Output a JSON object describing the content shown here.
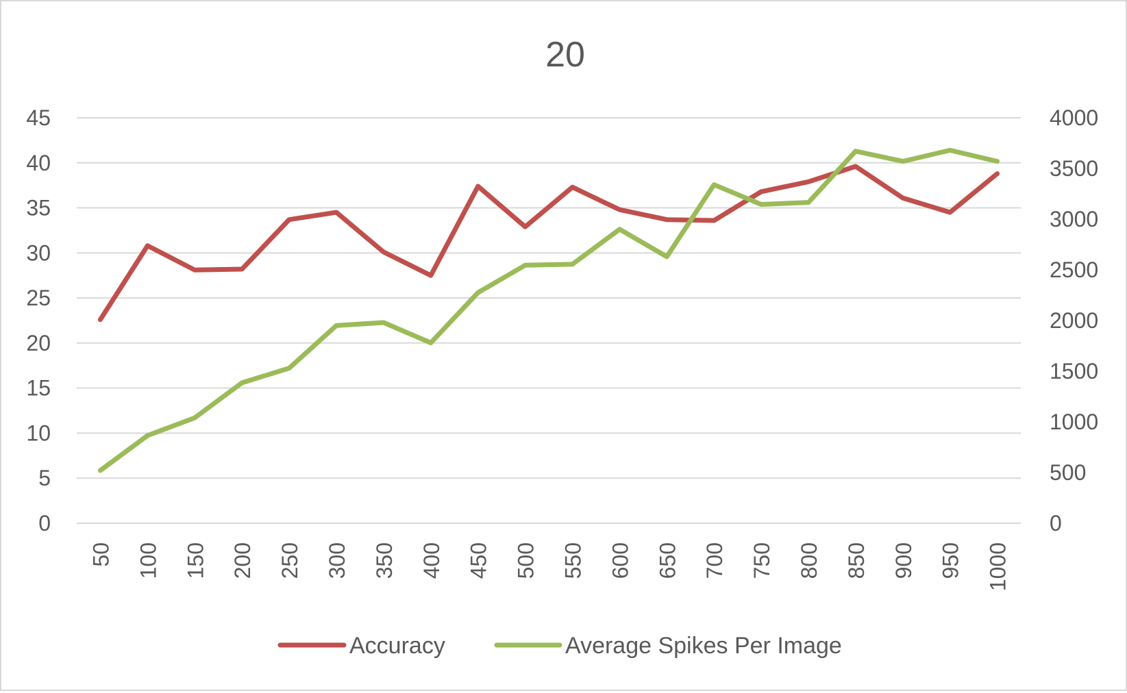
{
  "chart_data": {
    "type": "line",
    "title": "20",
    "xlabel": "",
    "ylabel": "",
    "ylabel_right": "",
    "categories": [
      "50",
      "100",
      "150",
      "200",
      "250",
      "300",
      "350",
      "400",
      "450",
      "500",
      "550",
      "600",
      "650",
      "700",
      "750",
      "800",
      "850",
      "900",
      "950",
      "1000"
    ],
    "ylim": [
      0,
      45
    ],
    "y_ticks": [
      "0",
      "5",
      "10",
      "15",
      "20",
      "25",
      "30",
      "35",
      "40",
      "45"
    ],
    "ylim_right": [
      0,
      4000
    ],
    "y_ticks_right": [
      "0",
      "500",
      "1000",
      "1500",
      "2000",
      "2500",
      "3000",
      "3500",
      "4000"
    ],
    "grid": true,
    "legend_position": "bottom",
    "series": [
      {
        "name": "Accuracy",
        "axis": "left",
        "color": "#c0504d",
        "values": [
          22.6,
          30.8,
          28.1,
          28.2,
          33.7,
          34.5,
          30.1,
          27.5,
          37.4,
          32.9,
          37.3,
          34.8,
          33.7,
          33.6,
          36.8,
          37.9,
          39.6,
          36.1,
          34.5,
          38.8
        ]
      },
      {
        "name": "Average Spikes Per Image",
        "axis": "right",
        "color": "#9bbb59",
        "values": [
          520,
          865,
          1040,
          1385,
          1530,
          1950,
          1980,
          1780,
          2275,
          2545,
          2555,
          2900,
          2630,
          3340,
          3145,
          3165,
          3670,
          3570,
          3680,
          3570
        ]
      }
    ]
  }
}
